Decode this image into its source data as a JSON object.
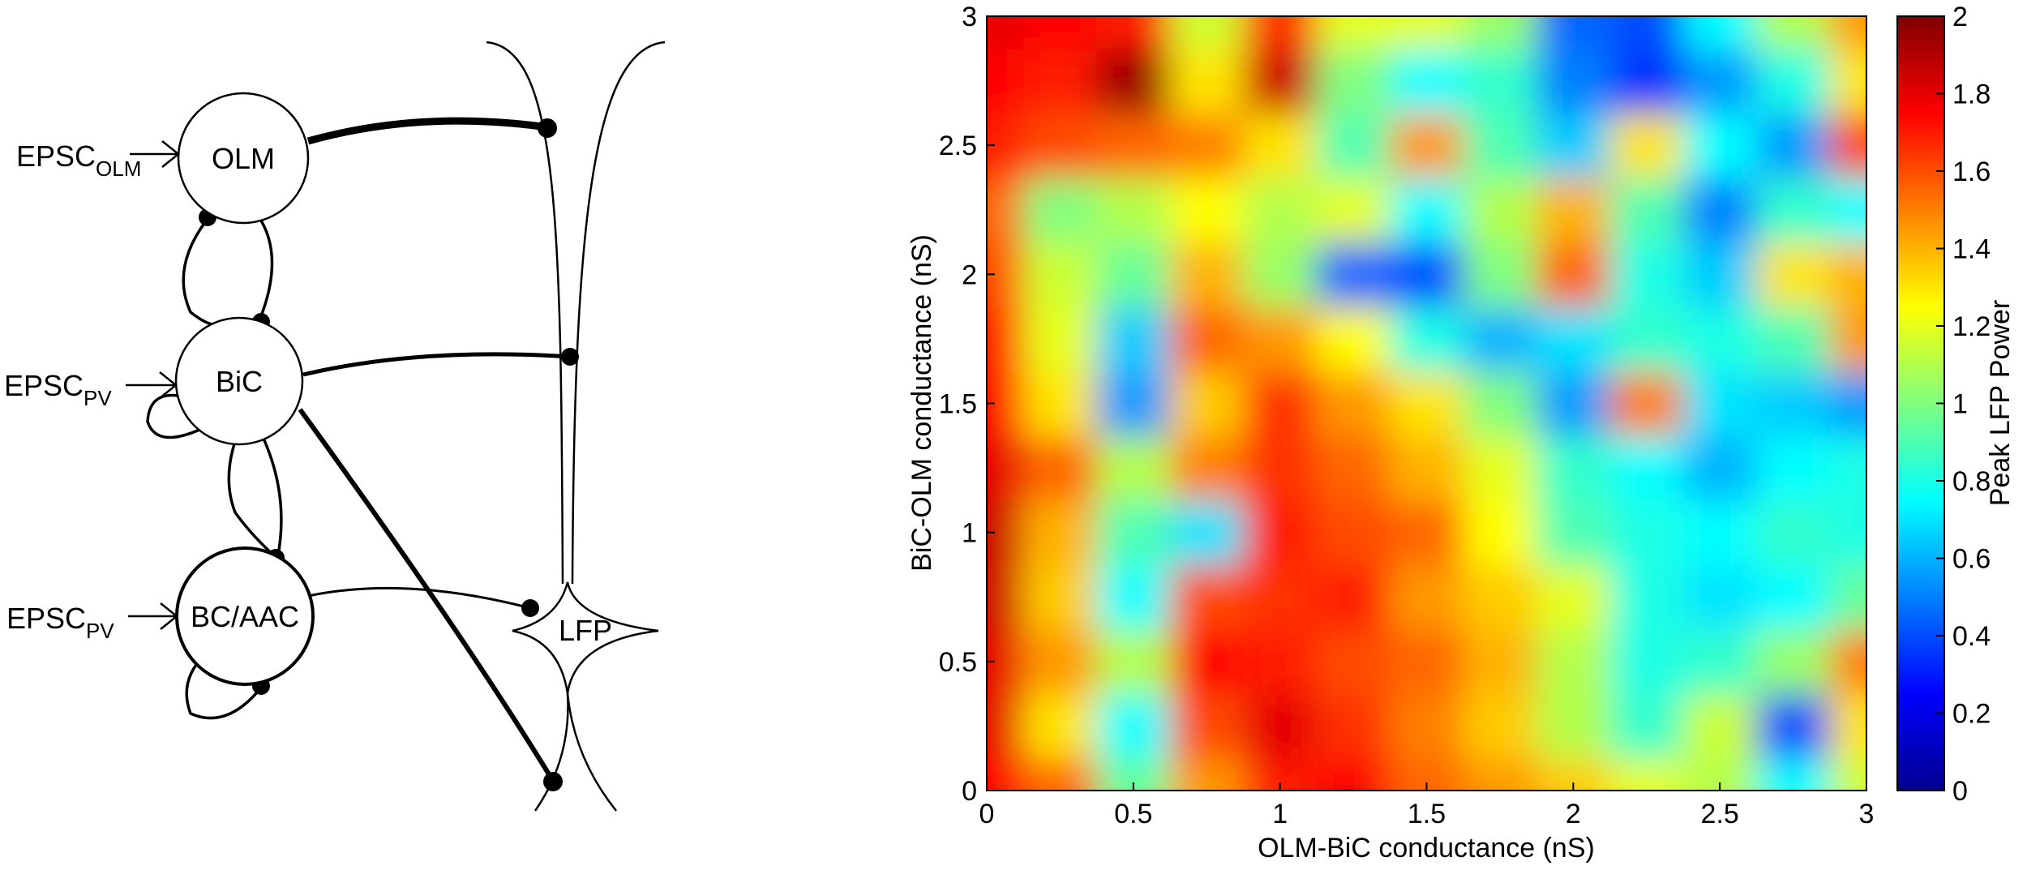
{
  "diagram": {
    "nodes": [
      {
        "id": "olm",
        "label": "OLM"
      },
      {
        "id": "bic",
        "label": "BiC"
      },
      {
        "id": "bcaac",
        "label": "BC/AAC"
      },
      {
        "id": "lfp",
        "label": "LFP"
      }
    ],
    "inputs": [
      {
        "target": "olm",
        "base": "EPSC",
        "sub": "OLM"
      },
      {
        "target": "bic",
        "base": "EPSC",
        "sub": "PV"
      },
      {
        "target": "bcaac",
        "base": "EPSC",
        "sub": "PV"
      }
    ],
    "edges": [
      {
        "from": "olm",
        "to": "pyramidal-dendrite",
        "weight": "strong"
      },
      {
        "from": "olm",
        "to": "bic"
      },
      {
        "from": "bic",
        "to": "olm"
      },
      {
        "from": "bic",
        "to": "pyramidal-dendrite"
      },
      {
        "from": "bic",
        "to": "bic"
      },
      {
        "from": "bic",
        "to": "bcaac"
      },
      {
        "from": "bcaac",
        "to": "bic"
      },
      {
        "from": "bcaac",
        "to": "lfp-soma"
      },
      {
        "from": "bcaac",
        "to": "bcaac"
      },
      {
        "from": "bic",
        "to": "pyramidal-basal",
        "weight": "strong"
      }
    ]
  },
  "chart_data": {
    "type": "heatmap",
    "xlabel": "OLM-BiC conductance (nS)",
    "ylabel": "BiC-OLM conductance (nS)",
    "xlim": [
      0,
      3
    ],
    "ylim": [
      0,
      3
    ],
    "xticks": [
      "0",
      "0.5",
      "1",
      "1.5",
      "2",
      "2.5",
      "3"
    ],
    "yticks": [
      "0",
      "0.5",
      "1",
      "1.5",
      "2",
      "2.5",
      "3"
    ],
    "colorbar": {
      "label": "Peak LFP Power",
      "range": [
        0,
        2
      ],
      "ticks": [
        "0",
        "0.2",
        "0.4",
        "0.6",
        "0.8",
        "1",
        "1.2",
        "1.4",
        "1.6",
        "1.8",
        "2"
      ],
      "colormap": "jet"
    },
    "x": [
      0,
      0.25,
      0.5,
      0.75,
      1,
      1.25,
      1.5,
      1.75,
      2,
      2.25,
      2.5,
      2.75,
      3
    ],
    "y": [
      0,
      0.25,
      0.5,
      0.75,
      1,
      1.25,
      1.5,
      1.75,
      2,
      2.25,
      2.5,
      2.75,
      3
    ],
    "z": [
      [
        1.75,
        1.55,
        0.95,
        1.45,
        1.7,
        1.75,
        1.55,
        1.45,
        1.35,
        1.2,
        1.1,
        0.75,
        1.15
      ],
      [
        1.8,
        1.3,
        0.75,
        1.6,
        1.8,
        1.65,
        1.5,
        1.35,
        1.1,
        0.85,
        1.15,
        0.4,
        1.3
      ],
      [
        1.8,
        1.45,
        1.1,
        1.75,
        1.7,
        1.6,
        1.55,
        1.4,
        1.1,
        0.8,
        0.85,
        1.05,
        1.5
      ],
      [
        1.85,
        1.35,
        0.75,
        1.6,
        1.65,
        1.7,
        1.45,
        1.35,
        1.2,
        0.8,
        0.7,
        0.75,
        0.95
      ],
      [
        1.85,
        1.4,
        0.9,
        0.7,
        1.7,
        1.6,
        1.55,
        1.25,
        0.9,
        0.8,
        0.75,
        0.85,
        0.8
      ],
      [
        1.8,
        1.55,
        1.1,
        1.5,
        1.65,
        1.55,
        1.4,
        1.2,
        0.85,
        0.75,
        0.6,
        0.75,
        0.8
      ],
      [
        1.75,
        1.3,
        0.55,
        1.35,
        1.65,
        1.45,
        1.3,
        1.0,
        0.55,
        1.5,
        0.7,
        0.65,
        0.55
      ],
      [
        1.7,
        1.2,
        0.65,
        1.55,
        1.45,
        1.25,
        0.8,
        0.6,
        0.7,
        0.85,
        0.8,
        0.9,
        1.45
      ],
      [
        1.6,
        1.15,
        0.95,
        1.4,
        1.05,
        0.45,
        0.4,
        1.0,
        1.55,
        0.8,
        0.65,
        1.3,
        1.4
      ],
      [
        1.55,
        1.0,
        1.1,
        1.25,
        1.1,
        1.2,
        0.75,
        1.1,
        1.4,
        0.9,
        0.5,
        0.85,
        0.75
      ],
      [
        1.7,
        1.6,
        1.55,
        1.5,
        1.3,
        0.9,
        1.45,
        0.9,
        0.65,
        1.3,
        0.75,
        0.55,
        1.6
      ],
      [
        1.75,
        1.7,
        1.95,
        1.3,
        1.85,
        1.0,
        0.75,
        0.85,
        0.5,
        0.35,
        0.55,
        0.8,
        1.3
      ],
      [
        1.8,
        1.75,
        1.7,
        1.15,
        1.65,
        1.2,
        1.2,
        1.05,
        0.45,
        0.4,
        0.75,
        1.1,
        1.45
      ]
    ]
  }
}
